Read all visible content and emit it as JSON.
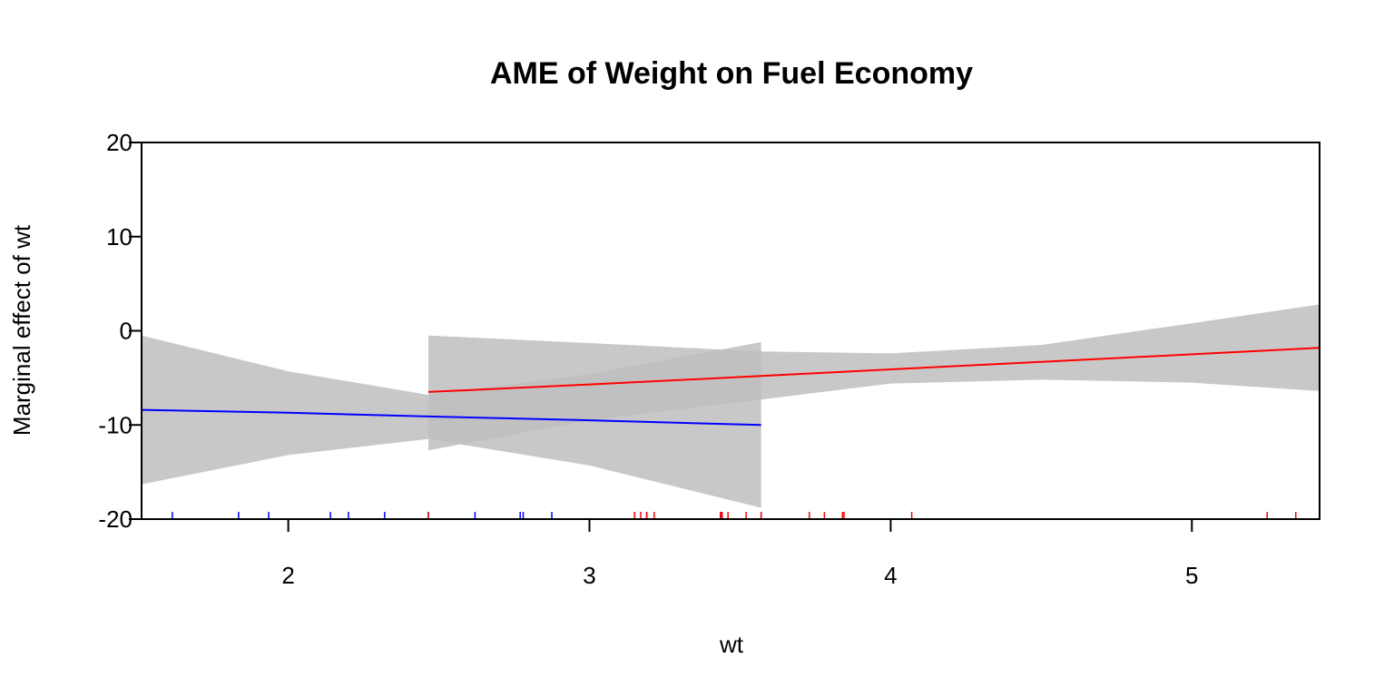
{
  "chart_data": {
    "type": "line",
    "title": "AME of Weight on Fuel Economy",
    "xlabel": "wt",
    "ylabel": "Marginal effect of wt",
    "xlim": [
      1.513,
      5.424
    ],
    "ylim": [
      -20,
      20
    ],
    "x_ticks": [
      2,
      3,
      4,
      5
    ],
    "y_ticks": [
      20,
      10,
      0,
      -10,
      -20
    ],
    "grid": false,
    "legend": "none",
    "series": [
      {
        "color": "#0000ff",
        "band_color": "#bebebe",
        "x": [
          1.513,
          2.0,
          2.465,
          3.0,
          3.57
        ],
        "y": [
          -8.4,
          -8.7,
          -9.1,
          -9.5,
          -10.0
        ],
        "lower": [
          -16.3,
          -13.2,
          -11.5,
          -14.3,
          -18.8
        ],
        "upper": [
          -0.5,
          -4.3,
          -6.8,
          -4.6,
          -1.2
        ]
      },
      {
        "color": "#ff0000",
        "band_color": "#bebebe",
        "x": [
          2.465,
          3.0,
          3.57,
          4.0,
          4.5,
          5.0,
          5.424
        ],
        "y": [
          -6.5,
          -5.7,
          -4.8,
          -4.1,
          -3.3,
          -2.5,
          -1.8
        ],
        "lower": [
          -12.7,
          -9.5,
          -7.3,
          -5.6,
          -5.2,
          -5.5,
          -6.4
        ],
        "upper": [
          -0.5,
          -1.3,
          -2.2,
          -2.4,
          -1.5,
          0.8,
          2.8
        ]
      }
    ],
    "rug": {
      "blue": [
        1.615,
        1.835,
        1.935,
        2.14,
        2.2,
        2.32,
        2.465,
        2.62,
        2.77,
        2.78,
        2.875,
        3.15,
        3.19,
        3.435,
        3.44,
        3.57
      ],
      "red": [
        2.465,
        3.15,
        3.17,
        3.19,
        3.215,
        3.435,
        3.44,
        3.44,
        3.46,
        3.52,
        3.57,
        3.73,
        3.78,
        3.84,
        3.845,
        4.07,
        5.25,
        5.345
      ]
    }
  }
}
